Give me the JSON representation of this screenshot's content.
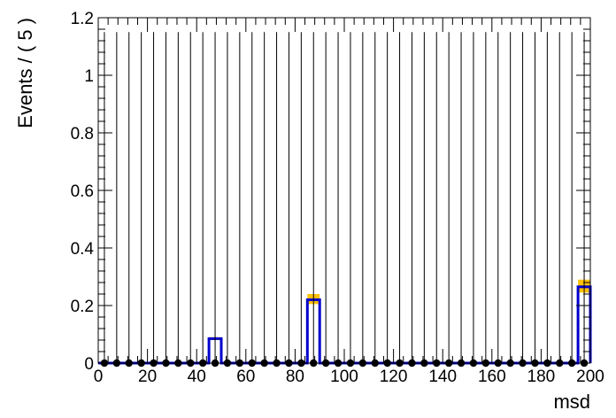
{
  "chart_data": {
    "type": "bar",
    "title": "",
    "xlabel": "msd",
    "ylabel": "Events / ( 5 )",
    "xlim": [
      0,
      200
    ],
    "ylim": [
      0,
      1.2
    ],
    "bin_width": 5,
    "grid": false,
    "legend": "none",
    "x_ticks": [
      0,
      20,
      40,
      60,
      80,
      100,
      120,
      140,
      160,
      180,
      200
    ],
    "x_tick_labels": [
      "0",
      "20",
      "40",
      "60",
      "80",
      "100",
      "120",
      "140",
      "160",
      "180",
      "200"
    ],
    "y_ticks": [
      0,
      0.2,
      0.4,
      0.6,
      0.8,
      1,
      1.2
    ],
    "y_tick_labels": [
      "0",
      "0.2",
      "0.4",
      "0.6",
      "0.8",
      "1",
      "1.2"
    ],
    "data_points": {
      "x": [
        2.5,
        7.5,
        12.5,
        17.5,
        22.5,
        27.5,
        32.5,
        37.5,
        42.5,
        47.5,
        52.5,
        57.5,
        62.5,
        67.5,
        72.5,
        77.5,
        82.5,
        87.5,
        92.5,
        97.5,
        102.5,
        107.5,
        112.5,
        117.5,
        122.5,
        127.5,
        132.5,
        137.5,
        142.5,
        147.5,
        152.5,
        157.5,
        162.5,
        167.5,
        172.5,
        177.5,
        182.5,
        187.5,
        192.5,
        197.5
      ],
      "y": [
        0,
        0,
        0,
        0,
        0,
        0,
        0,
        0,
        0,
        0,
        0,
        0,
        0,
        0,
        0,
        0,
        0,
        0,
        0,
        0,
        0,
        0,
        0,
        0,
        0,
        0,
        0,
        0,
        0,
        0,
        0,
        0,
        0,
        0,
        0,
        0,
        0,
        0,
        0,
        0
      ],
      "err_up": [
        1.15,
        1.15,
        1.15,
        1.15,
        1.15,
        1.15,
        1.15,
        1.15,
        1.15,
        1.15,
        1.15,
        1.15,
        1.15,
        1.15,
        1.15,
        1.15,
        1.15,
        1.15,
        1.15,
        1.15,
        1.15,
        1.15,
        1.15,
        1.15,
        1.15,
        1.15,
        1.15,
        1.15,
        1.15,
        1.15,
        1.15,
        1.15,
        1.15,
        1.15,
        1.15,
        1.15,
        1.15,
        1.15,
        1.15,
        1.15
      ],
      "color": "#000000"
    },
    "model_histogram": {
      "bin_edges": [
        45,
        50,
        85,
        90,
        195,
        200
      ],
      "bins": [
        [
          45,
          50,
          0.085
        ],
        [
          85,
          90,
          0.22
        ],
        [
          195,
          200,
          0.265
        ]
      ],
      "color": "#0000cc"
    },
    "uncertainty_band": {
      "bins": [
        [
          45,
          50,
          0.08,
          0.09
        ],
        [
          85,
          90,
          0.205,
          0.24
        ],
        [
          195,
          200,
          0.245,
          0.29
        ]
      ],
      "color": "#ffc107"
    },
    "colors": {
      "frame": "#000000",
      "background": "#ffffff"
    }
  }
}
